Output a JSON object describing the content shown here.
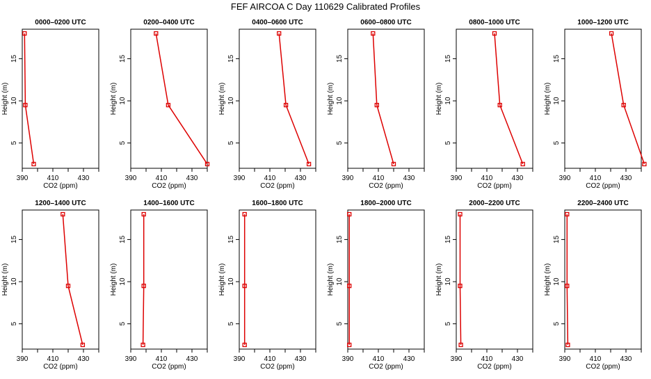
{
  "title": "FEF AIRCOA C  Day 110629  Calibrated Profiles",
  "chart_data": {
    "type": "line",
    "layout": "2 rows x 6 columns of small multiples",
    "xlabel": "CO2 (ppm)",
    "ylabel": "Height (m)",
    "xlim": [
      390,
      440
    ],
    "ylim": [
      2,
      18.5
    ],
    "xticks": [
      "390",
      "410",
      "430"
    ],
    "yticks": [
      "5",
      "10",
      "15"
    ],
    "series_color": "#dd0000",
    "heights": [
      18,
      9.5,
      2.5
    ],
    "panels": [
      {
        "title": "0000–0200 UTC",
        "co2": [
          391.5,
          392.0,
          397.5
        ]
      },
      {
        "title": "0200–0400 UTC",
        "co2": [
          406.5,
          414.5,
          440.0
        ]
      },
      {
        "title": "0400–0600 UTC",
        "co2": [
          416.0,
          420.5,
          435.5
        ]
      },
      {
        "title": "0600–0800 UTC",
        "co2": [
          406.5,
          409.0,
          420.0
        ]
      },
      {
        "title": "0800–1000 UTC",
        "co2": [
          415.0,
          418.5,
          433.5
        ]
      },
      {
        "title": "1000–1200 UTC",
        "co2": [
          420.5,
          428.5,
          442.0
        ]
      },
      {
        "title": "1200–1400 UTC",
        "co2": [
          416.5,
          420.0,
          429.5
        ]
      },
      {
        "title": "1400–1600 UTC",
        "co2": [
          398.5,
          398.5,
          398.0
        ]
      },
      {
        "title": "1600–1800 UTC",
        "co2": [
          393.5,
          393.5,
          393.5
        ]
      },
      {
        "title": "1800–2000 UTC",
        "co2": [
          391.0,
          391.0,
          391.0
        ]
      },
      {
        "title": "2000–2200 UTC",
        "co2": [
          392.5,
          392.5,
          393.0
        ]
      },
      {
        "title": "2200–2400 UTC",
        "co2": [
          391.5,
          391.5,
          392.0
        ]
      }
    ]
  }
}
